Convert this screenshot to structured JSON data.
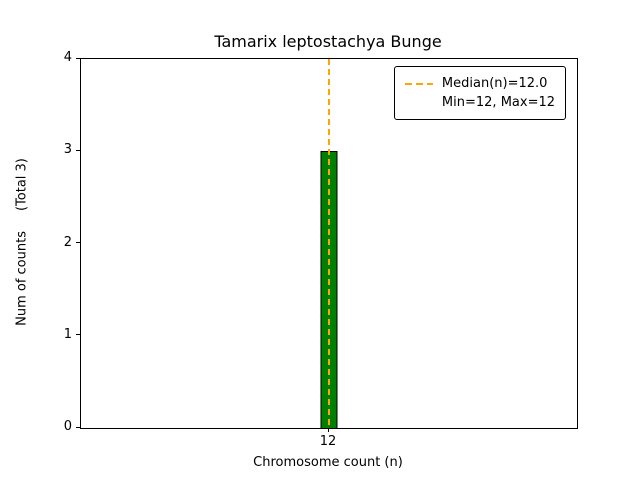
{
  "chart_data": {
    "type": "bar",
    "title": "Tamarix leptostachya Bunge",
    "categories": [
      "12"
    ],
    "values": [
      3
    ],
    "xlabel": "Chromosome count (n)",
    "ylabel": "Num of counts",
    "ylabel_note": "(Total 3)",
    "ylim": [
      0,
      4
    ],
    "yticks": [
      0,
      1,
      2,
      3,
      4
    ],
    "grid": false,
    "bar_color": "#008000",
    "bar_edge_color": "#000000",
    "median_line": {
      "value": 12.0,
      "color": "#FFA500",
      "style": "dashed"
    },
    "legend": {
      "position": "upper right",
      "entries": [
        {
          "label": "Median(n)=12.0",
          "marker": "dashed-line",
          "color": "#FFA500"
        },
        {
          "label": "Min=12, Max=12",
          "marker": "none"
        }
      ]
    }
  }
}
